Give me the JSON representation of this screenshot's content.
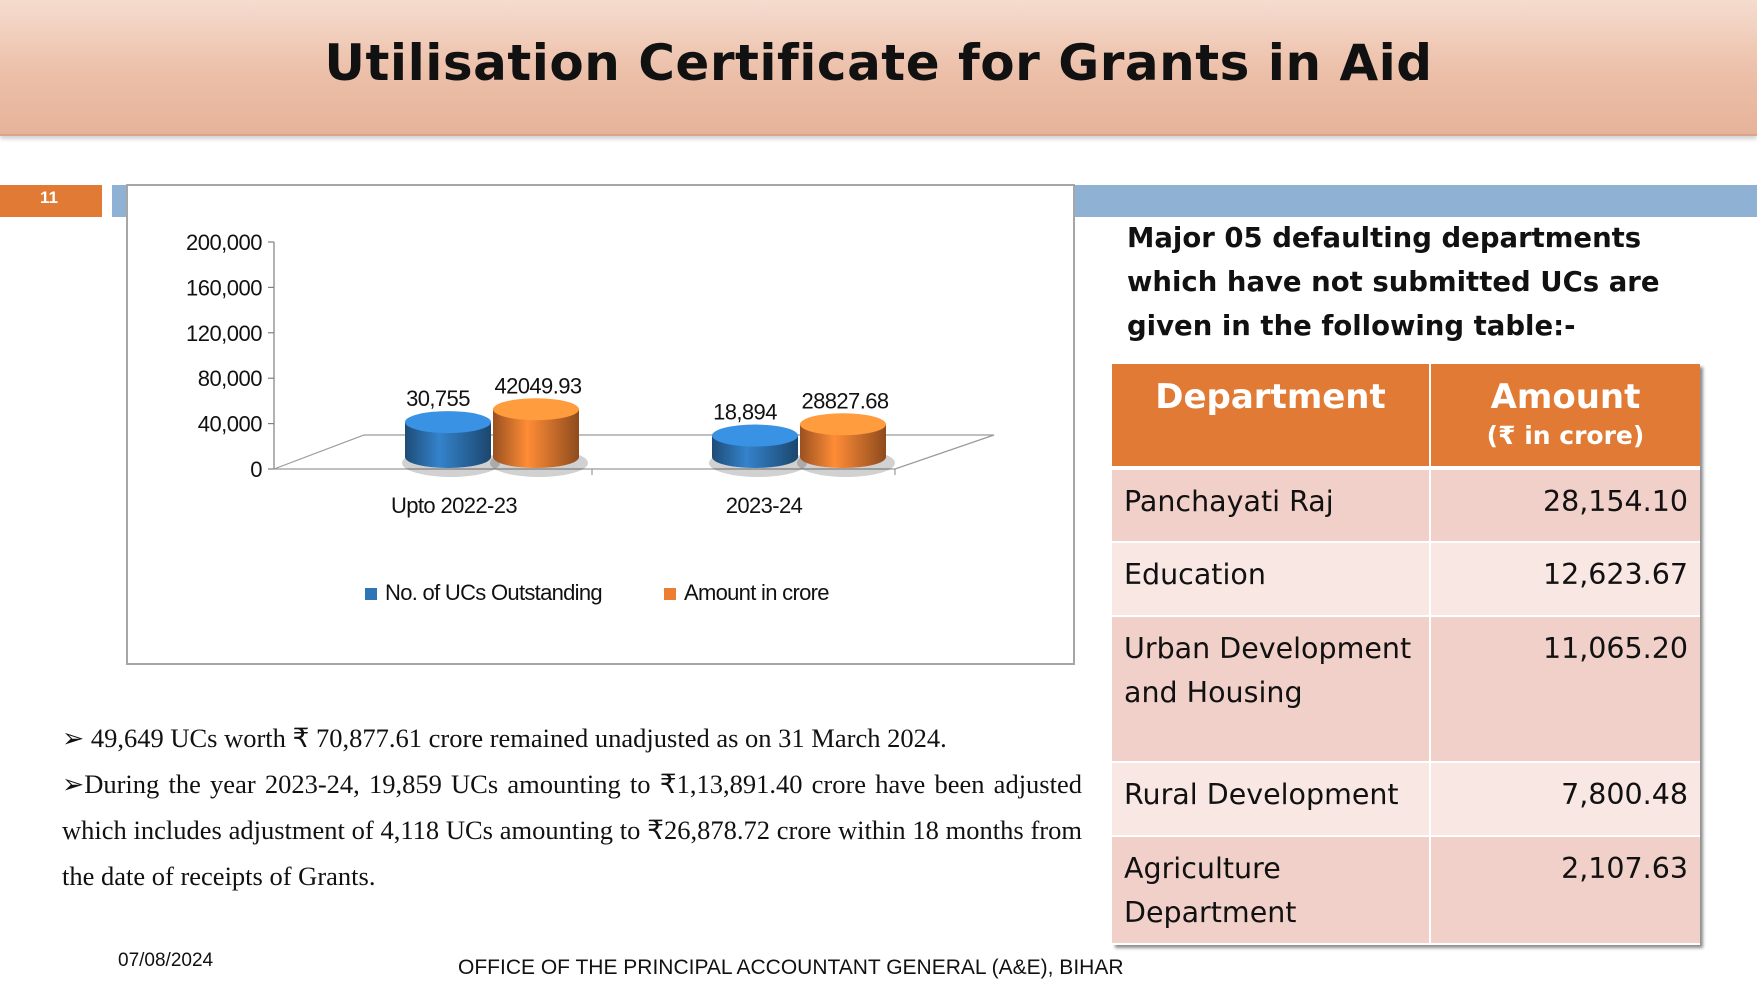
{
  "slide": {
    "title": "Utilisation Certificate for Grants in Aid",
    "number": "11",
    "footer_date": "07/08/2024",
    "footer_office": "OFFICE OF THE PRINCIPAL ACCOUNTANT GENERAL (A&E), BIHAR"
  },
  "intro": "Major 05 defaulting departments which have not submitted UCs are given in the following table:-",
  "table": {
    "header_department": "Department",
    "header_amount": "Amount",
    "header_amount_unit": "(₹ in crore)",
    "rows": [
      {
        "department": "Panchayati Raj",
        "amount": "28,154.10"
      },
      {
        "department": "Education",
        "amount": "12,623.67"
      },
      {
        "department": "Urban Development and Housing",
        "amount": "11,065.20"
      },
      {
        "department": "Rural Development",
        "amount": "7,800.48"
      },
      {
        "department": "Agriculture Department",
        "amount": "2,107.63"
      }
    ]
  },
  "bullets": [
    {
      "marker": "➢",
      "text": "49,649 UCs worth ₹ 70,877.61 crore remained unadjusted as on 31 March 2024."
    },
    {
      "marker": "➢",
      "text": "During the year 2023-24, 19,859 UCs amounting to ₹1,13,891.40 crore have been adjusted which includes adjustment of 4,118 UCs amounting to ₹26,878.72 crore within 18 months from the date of receipts of Grants."
    }
  ],
  "chart_data": {
    "type": "bar",
    "title": "",
    "categories": [
      "Upto 2022-23",
      "2023-24"
    ],
    "series": [
      {
        "name": "No. of UCs Outstanding",
        "values": [
          30755,
          18894
        ],
        "labels": [
          "30,755",
          "18,894"
        ],
        "color": "#2e75b6"
      },
      {
        "name": "Amount in crore",
        "values": [
          42049.93,
          28827.68
        ],
        "labels": [
          "42049.93",
          "28827.68"
        ],
        "color": "#ed7d31"
      }
    ],
    "ylim": [
      0,
      200000
    ],
    "yticks": [
      0,
      40000,
      80000,
      120000,
      160000,
      200000
    ],
    "ytick_labels": [
      "0",
      "40,000",
      "80,000",
      "120,000",
      "160,000",
      "200,000"
    ],
    "xlabel": "",
    "ylabel": "",
    "legend_position": "bottom"
  }
}
